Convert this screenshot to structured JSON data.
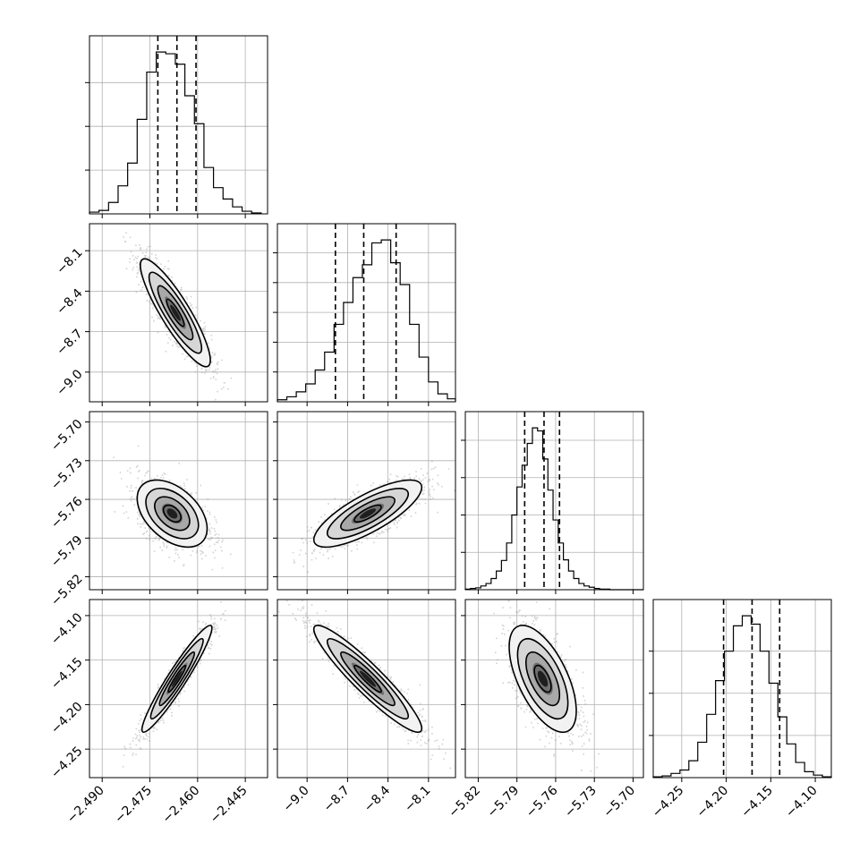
{
  "chart_data": {
    "type": "corner",
    "title": "",
    "grid": true,
    "parameters": [
      {
        "index": 0,
        "range": [
          -2.494,
          -2.438
        ],
        "ticks": [
          -2.49,
          -2.475,
          -2.46,
          -2.445
        ],
        "tick_labels": [
          "−2.490",
          "−2.475",
          "−2.460",
          "−2.445"
        ],
        "quantiles": [
          -2.4725,
          -2.4665,
          -2.4605
        ],
        "hist_edges": [
          -2.494,
          -2.491,
          -2.488,
          -2.485,
          -2.482,
          -2.479,
          -2.476,
          -2.473,
          -2.47,
          -2.467,
          -2.464,
          -2.461,
          -2.458,
          -2.455,
          -2.452,
          -2.449,
          -2.446,
          -2.443,
          -2.44
        ],
        "hist_counts": [
          2,
          4,
          13,
          32,
          58,
          108,
          162,
          185,
          183,
          171,
          135,
          103,
          53,
          30,
          17,
          8,
          3,
          1
        ],
        "hist_ticks": [
          50,
          100,
          150
        ]
      },
      {
        "index": 1,
        "range": [
          -9.22,
          -7.9
        ],
        "ticks": [
          -9.0,
          -8.7,
          -8.4,
          -8.1
        ],
        "tick_labels": [
          "−9.0",
          "−8.7",
          "−8.4",
          "−8.1"
        ],
        "quantiles": [
          -8.79,
          -8.58,
          -8.34
        ],
        "hist_edges": [
          -9.22,
          -9.15,
          -9.08,
          -9.01,
          -8.94,
          -8.87,
          -8.8,
          -8.73,
          -8.66,
          -8.59,
          -8.52,
          -8.45,
          -8.38,
          -8.31,
          -8.24,
          -8.17,
          -8.1,
          -8.03,
          -7.96,
          -7.9
        ],
        "hist_counts": [
          2,
          5,
          10,
          18,
          32,
          50,
          78,
          100,
          125,
          138,
          160,
          163,
          140,
          118,
          78,
          45,
          20,
          8,
          3
        ],
        "hist_ticks": [
          30,
          60,
          90,
          120,
          150
        ]
      },
      {
        "index": 2,
        "range": [
          -5.83,
          -5.692
        ],
        "ticks": [
          -5.82,
          -5.79,
          -5.76,
          -5.73,
          -5.7
        ],
        "tick_labels": [
          "−5.82",
          "−5.79",
          "−5.76",
          "−5.73",
          "−5.70"
        ],
        "quantiles": [
          -5.784,
          -5.769,
          -5.757
        ],
        "hist_edges": [
          -5.83,
          -5.826,
          -5.822,
          -5.818,
          -5.814,
          -5.81,
          -5.806,
          -5.802,
          -5.798,
          -5.794,
          -5.79,
          -5.786,
          -5.782,
          -5.778,
          -5.774,
          -5.77,
          -5.766,
          -5.762,
          -5.758,
          -5.754,
          -5.75,
          -5.746,
          -5.742,
          -5.738,
          -5.734,
          -5.73,
          -5.726,
          -5.722,
          -5.718,
          -5.714,
          -5.71,
          -5.706,
          -5.702,
          -5.698,
          -5.694,
          -5.692
        ],
        "hist_counts": [
          1,
          2,
          3,
          6,
          10,
          18,
          30,
          47,
          75,
          120,
          165,
          200,
          235,
          260,
          255,
          210,
          160,
          112,
          75,
          48,
          30,
          18,
          10,
          6,
          4,
          2,
          1,
          1,
          0,
          0,
          0,
          0,
          0,
          0,
          0
        ],
        "hist_ticks": [
          60,
          120,
          180,
          240
        ]
      },
      {
        "index": 3,
        "range": [
          -4.282,
          -4.082
        ],
        "ticks": [
          -4.25,
          -4.2,
          -4.15,
          -4.1
        ],
        "tick_labels": [
          "−4.25",
          "−4.20",
          "−4.15",
          "−4.10"
        ],
        "quantiles": [
          -4.203,
          -4.171,
          -4.14
        ],
        "hist_edges": [
          -4.282,
          -4.272,
          -4.262,
          -4.252,
          -4.242,
          -4.232,
          -4.222,
          -4.212,
          -4.202,
          -4.192,
          -4.182,
          -4.172,
          -4.162,
          -4.152,
          -4.142,
          -4.132,
          -4.122,
          -4.112,
          -4.102,
          -4.092,
          -4.082
        ],
        "hist_counts": [
          1,
          2,
          5,
          9,
          20,
          42,
          75,
          115,
          150,
          180,
          192,
          182,
          150,
          112,
          72,
          40,
          18,
          7,
          3,
          1
        ],
        "hist_ticks": [
          50,
          100,
          150
        ]
      }
    ],
    "pairs": [
      {
        "row": 1,
        "col": 0,
        "mean": [
          -2.467,
          -8.56
        ],
        "sd": [
          0.0055,
          0.2
        ],
        "corr": -0.88
      },
      {
        "row": 2,
        "col": 0,
        "mean": [
          -2.468,
          -5.771
        ],
        "sd": [
          0.0055,
          0.013
        ],
        "corr": -0.45
      },
      {
        "row": 2,
        "col": 1,
        "mean": [
          -8.55,
          -5.771
        ],
        "sd": [
          0.2,
          0.013
        ],
        "corr": 0.78
      },
      {
        "row": 3,
        "col": 0,
        "mean": [
          -2.4665,
          -4.171
        ],
        "sd": [
          0.0055,
          0.03
        ],
        "corr": 0.95
      },
      {
        "row": 3,
        "col": 1,
        "mean": [
          -8.55,
          -4.171
        ],
        "sd": [
          0.2,
          0.03
        ],
        "corr": -0.93
      },
      {
        "row": 3,
        "col": 2,
        "mean": [
          -5.77,
          -4.171
        ],
        "sd": [
          0.013,
          0.03
        ],
        "corr": -0.6
      }
    ],
    "contour_levels_sigma": [
      0.5,
      1.0,
      1.5,
      2.0
    ]
  }
}
